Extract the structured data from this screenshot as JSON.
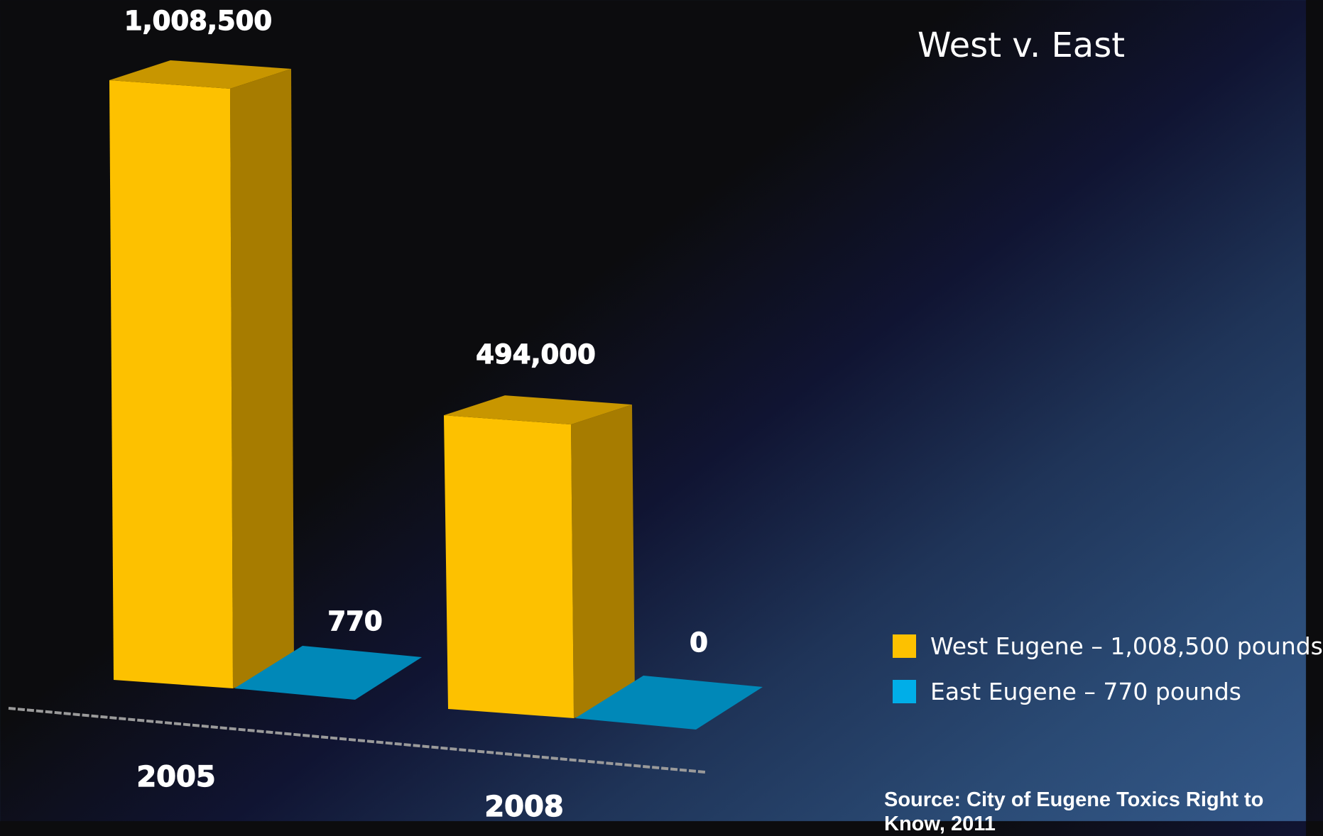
{
  "chart_data": {
    "type": "bar",
    "title": "West v. East",
    "categories": [
      "2005",
      "2008"
    ],
    "series": [
      {
        "name": "West Eugene – 1,008,500 pounds",
        "values": [
          1008500,
          494000
        ],
        "labels": [
          "1,008,500",
          "494,000"
        ]
      },
      {
        "name": "East Eugene – 770 pounds",
        "values": [
          770,
          0
        ],
        "labels": [
          "770",
          "0"
        ]
      }
    ],
    "xlabel": "",
    "ylabel": "",
    "ylim": [
      0,
      1008500
    ],
    "grid": false,
    "legend_position": "right",
    "three_d": true,
    "colors": {
      "west_front": "#fdc100",
      "west_top": "#c89600",
      "west_side": "#a77c00",
      "east_top": "#0088b8",
      "axis": "#9a9a9a"
    }
  },
  "legend": {
    "items": [
      {
        "label": "West Eugene – 1,008,500 pounds",
        "color": "#fdc100"
      },
      {
        "label": "East Eugene – 770 pounds",
        "color": "#00aee8"
      }
    ]
  },
  "source": "Source: City of Eugene Toxics Right to Know, 2011"
}
